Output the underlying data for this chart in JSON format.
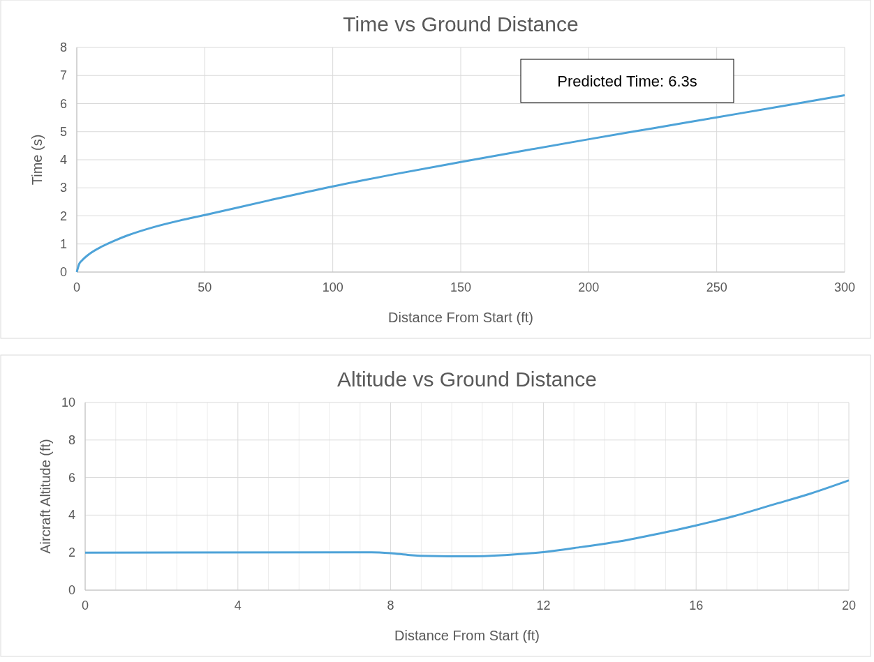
{
  "chart_data": [
    {
      "type": "line",
      "title": "Time vs Ground Distance",
      "xlabel": "Distance From Start (ft)",
      "ylabel": "Time (s)",
      "x": [
        0,
        1,
        2,
        5,
        10,
        15,
        20,
        30,
        40,
        50,
        75,
        100,
        125,
        150,
        175,
        200,
        225,
        250,
        275,
        300
      ],
      "series": [
        {
          "color": "#4ea3d8",
          "values": [
            0,
            0.3,
            0.41,
            0.65,
            0.92,
            1.13,
            1.31,
            1.6,
            1.83,
            2.03,
            2.55,
            3.05,
            3.5,
            3.92,
            4.33,
            4.73,
            5.12,
            5.51,
            5.9,
            6.3
          ]
        }
      ],
      "xlim": [
        0,
        300
      ],
      "xticks": [
        0,
        50,
        100,
        150,
        200,
        250,
        300
      ],
      "ylim": [
        0,
        8
      ],
      "yticks": [
        0,
        1,
        2,
        3,
        4,
        5,
        6,
        7,
        8
      ],
      "grid": true,
      "marker": "none",
      "line_style": "solid",
      "annotations": [
        "Predicted Time: 6.3s"
      ]
    },
    {
      "type": "line",
      "title": "Altitude vs Ground Distance",
      "xlabel": "Distance From Start (ft)",
      "ylabel": "Aircraft Altitude (ft)",
      "x": [
        0,
        7.5,
        8,
        8.5,
        9,
        10,
        11,
        12,
        13,
        14,
        15,
        16,
        17,
        18,
        19,
        20
      ],
      "series": [
        {
          "color": "#4ea3d8",
          "values": [
            2,
            2.02,
            1.97,
            1.87,
            1.82,
            1.8,
            1.87,
            2.03,
            2.3,
            2.6,
            3.0,
            3.45,
            3.95,
            4.55,
            5.15,
            5.85
          ]
        }
      ],
      "xlim": [
        0,
        20
      ],
      "xticks": [
        0,
        {
          "value": 0.8,
          "label": null
        },
        {
          "value": 1.6,
          "label": null
        },
        {
          "value": 2.4,
          "label": null
        },
        {
          "value": 3.2,
          "label": null
        },
        4,
        {
          "value": 4.8,
          "label": null
        },
        {
          "value": 5.6,
          "label": null
        },
        {
          "value": 6.4,
          "label": null
        },
        {
          "value": 7.2,
          "label": null
        },
        8,
        {
          "value": 8.8,
          "label": null
        },
        {
          "value": 9.6,
          "label": null
        },
        {
          "value": 10.4,
          "label": null
        },
        {
          "value": 11.2,
          "label": null
        },
        12,
        {
          "value": 12.8,
          "label": null
        },
        {
          "value": 13.6,
          "label": null
        },
        {
          "value": 14.4,
          "label": null
        },
        {
          "value": 15.2,
          "label": null
        },
        16,
        {
          "value": 16.8,
          "label": null
        },
        {
          "value": 17.6,
          "label": null
        },
        {
          "value": 18.4,
          "label": null
        },
        {
          "value": 19.2,
          "label": null
        },
        20
      ],
      "ylim": [
        0,
        10
      ],
      "yticks": [
        0,
        2,
        4,
        6,
        8,
        10
      ],
      "grid": true,
      "marker": "none",
      "line_style": "solid"
    }
  ]
}
